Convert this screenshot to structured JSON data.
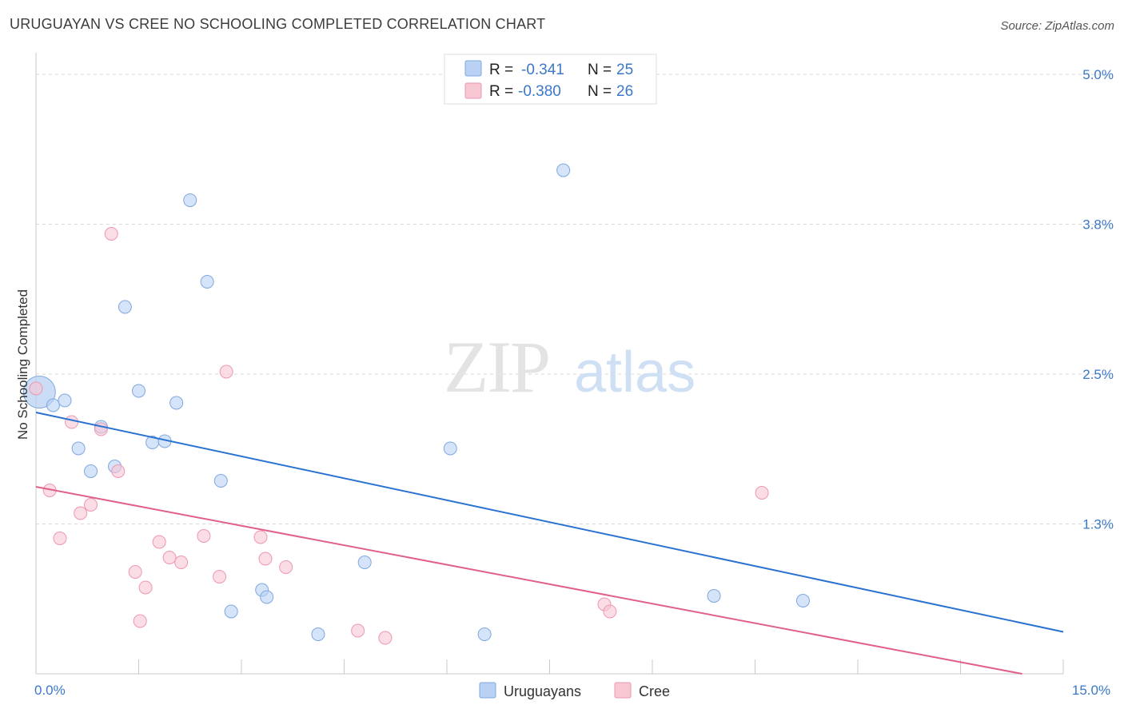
{
  "title": "URUGUAYAN VS CREE NO SCHOOLING COMPLETED CORRELATION CHART",
  "source": "Source: ZipAtlas.com",
  "colors": {
    "blue_fill": "#b9d2f3",
    "blue_stroke": "#7fa8e0",
    "blue_line": "#2a72d0",
    "pink_fill": "#f8c7d4",
    "pink_stroke": "#ee97b1",
    "pink_line": "#e0608a",
    "tick_label": "#3b78c8",
    "grid": "#d8d8d8"
  },
  "legend_box": {
    "rows": [
      {
        "r_label": "R =",
        "r_value": "-0.341",
        "n_label": "N =",
        "n_value": "25",
        "series": "blue"
      },
      {
        "r_label": "R =",
        "r_value": "-0.380",
        "n_label": "N =",
        "n_value": "26",
        "series": "pink"
      }
    ]
  },
  "watermark": {
    "part1": "ZIP",
    "part2": "atlas"
  },
  "chart_data": {
    "type": "scatter",
    "xlabel": "",
    "ylabel": "No Schooling Completed",
    "xlim": [
      0,
      15
    ],
    "ylim": [
      0,
      5.1
    ],
    "x_tick_labels": [
      {
        "value": 0,
        "label": "0.0%"
      },
      {
        "value": 15,
        "label": "15.0%"
      }
    ],
    "y_tick_labels": [
      {
        "value": 5.0,
        "label": "5.0%"
      },
      {
        "value": 3.75,
        "label": "3.8%"
      },
      {
        "value": 2.5,
        "label": "2.5%"
      },
      {
        "value": 1.25,
        "label": "1.3%"
      }
    ],
    "x_minor_ticks": [
      1.5,
      3.0,
      4.5,
      6.0,
      7.5,
      9.0,
      10.5,
      12.0,
      13.5,
      15.0
    ],
    "series": [
      {
        "name": "Uruguayans",
        "color": "blue",
        "trend": {
          "x1": 0,
          "y1": 2.18,
          "x2": 15,
          "y2": 0.35
        },
        "points": [
          {
            "x": 0.05,
            "y": 2.35,
            "big": true
          },
          {
            "x": 0.25,
            "y": 2.24
          },
          {
            "x": 0.42,
            "y": 2.28
          },
          {
            "x": 0.62,
            "y": 1.88
          },
          {
            "x": 0.8,
            "y": 1.69
          },
          {
            "x": 0.95,
            "y": 2.06
          },
          {
            "x": 1.15,
            "y": 1.73
          },
          {
            "x": 1.3,
            "y": 3.06
          },
          {
            "x": 1.5,
            "y": 2.36
          },
          {
            "x": 1.7,
            "y": 1.93
          },
          {
            "x": 1.88,
            "y": 1.94
          },
          {
            "x": 2.05,
            "y": 2.26
          },
          {
            "x": 2.25,
            "y": 3.95
          },
          {
            "x": 2.5,
            "y": 3.27
          },
          {
            "x": 2.7,
            "y": 1.61
          },
          {
            "x": 2.85,
            "y": 0.52
          },
          {
            "x": 3.3,
            "y": 0.7
          },
          {
            "x": 3.37,
            "y": 0.64
          },
          {
            "x": 4.12,
            "y": 0.33
          },
          {
            "x": 4.8,
            "y": 0.93
          },
          {
            "x": 6.05,
            "y": 1.88
          },
          {
            "x": 6.55,
            "y": 0.33
          },
          {
            "x": 7.7,
            "y": 4.2
          },
          {
            "x": 9.9,
            "y": 0.65
          },
          {
            "x": 11.2,
            "y": 0.61
          }
        ]
      },
      {
        "name": "Cree",
        "color": "pink",
        "trend": {
          "x1": 0,
          "y1": 1.56,
          "x2": 14.4,
          "y2": 0.0
        },
        "points": [
          {
            "x": 0.0,
            "y": 2.38
          },
          {
            "x": 0.2,
            "y": 1.53
          },
          {
            "x": 0.35,
            "y": 1.13
          },
          {
            "x": 0.52,
            "y": 2.1
          },
          {
            "x": 0.65,
            "y": 1.34
          },
          {
            "x": 0.8,
            "y": 1.41
          },
          {
            "x": 0.95,
            "y": 2.04
          },
          {
            "x": 1.1,
            "y": 3.67
          },
          {
            "x": 1.2,
            "y": 1.69
          },
          {
            "x": 1.45,
            "y": 0.85
          },
          {
            "x": 1.52,
            "y": 0.44
          },
          {
            "x": 1.6,
            "y": 0.72
          },
          {
            "x": 1.8,
            "y": 1.1
          },
          {
            "x": 1.95,
            "y": 0.97
          },
          {
            "x": 2.12,
            "y": 0.93
          },
          {
            "x": 2.45,
            "y": 1.15
          },
          {
            "x": 2.68,
            "y": 0.81
          },
          {
            "x": 2.78,
            "y": 2.52
          },
          {
            "x": 3.28,
            "y": 1.14
          },
          {
            "x": 3.35,
            "y": 0.96
          },
          {
            "x": 3.65,
            "y": 0.89
          },
          {
            "x": 4.7,
            "y": 0.36
          },
          {
            "x": 5.1,
            "y": 0.3
          },
          {
            "x": 8.3,
            "y": 0.58
          },
          {
            "x": 8.38,
            "y": 0.52
          },
          {
            "x": 10.6,
            "y": 1.51
          }
        ]
      }
    ]
  },
  "bottom_legend": [
    {
      "label": "Uruguayans",
      "color": "blue"
    },
    {
      "label": "Cree",
      "color": "pink"
    }
  ]
}
